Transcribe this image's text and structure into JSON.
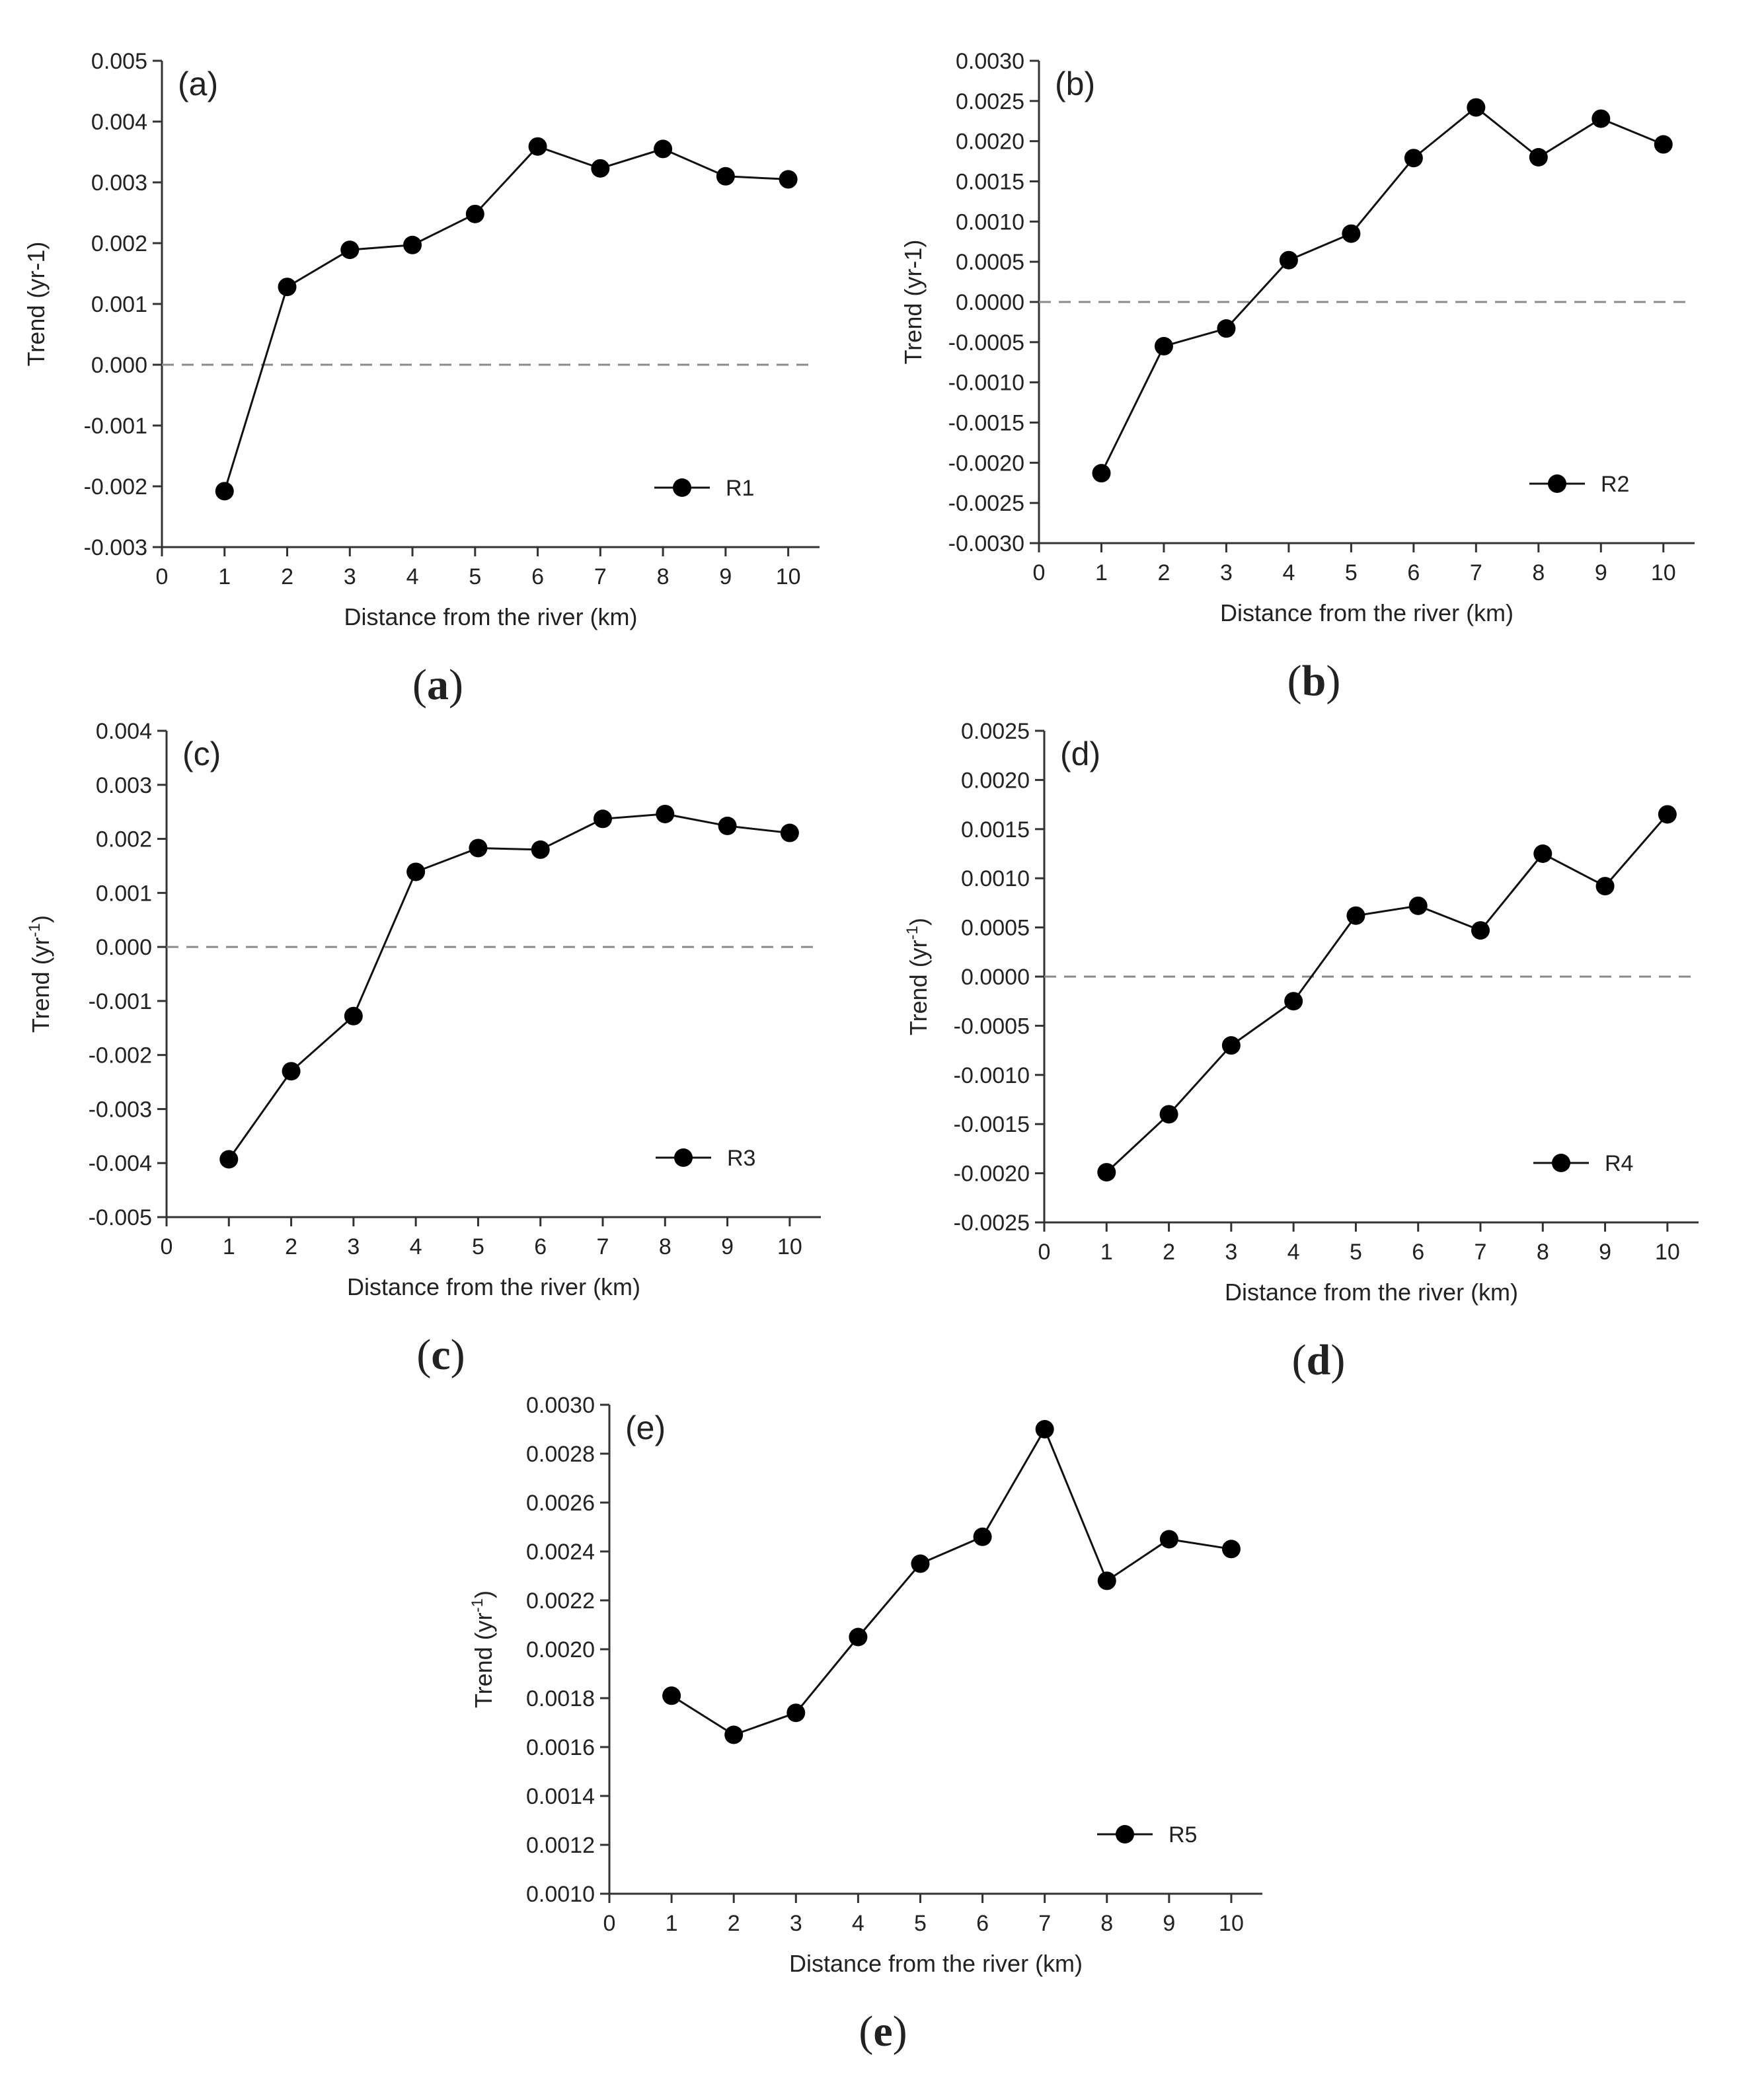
{
  "chart_data": [
    {
      "id": "a",
      "type": "line",
      "panel_label": "(a)",
      "caption_letter": "a",
      "xlabel": "Distance from the river (km)",
      "ylabel": "Trend (yr-1)",
      "xlim": [
        0,
        10.5
      ],
      "xticks": [
        0,
        1,
        2,
        3,
        4,
        5,
        6,
        7,
        8,
        9,
        10
      ],
      "ylim": [
        -0.003,
        0.005
      ],
      "yticks": [
        "0.005",
        "0.004",
        "0.003",
        "0.002",
        "0.001",
        "0.000",
        "-0.001",
        "-0.002",
        "-0.003"
      ],
      "reference_line_y": 0,
      "series": [
        {
          "name": "R1",
          "x": [
            1,
            2,
            3,
            4,
            5,
            6,
            7,
            8,
            9,
            10
          ],
          "values": [
            -0.00208,
            0.00128,
            0.00189,
            0.00197,
            0.00248,
            0.00359,
            0.00323,
            0.00355,
            0.0031,
            0.00305
          ]
        }
      ],
      "legend": "bottom-right"
    },
    {
      "id": "b",
      "type": "line",
      "panel_label": "(b)",
      "caption_letter": "b",
      "xlabel": "Distance from the river (km)",
      "ylabel": "Trend (yr-1)",
      "xlim": [
        0,
        10.5
      ],
      "xticks": [
        0,
        1,
        2,
        3,
        4,
        5,
        6,
        7,
        8,
        9,
        10
      ],
      "ylim": [
        -0.003,
        0.003
      ],
      "yticks": [
        "0.0030",
        "0.0025",
        "0.0020",
        "0.0015",
        "0.0010",
        "0.0005",
        "0.0000",
        "-0.0005",
        "-0.0010",
        "-0.0015",
        "-0.0020",
        "-0.0025",
        "-0.0030"
      ],
      "reference_line_y": 0,
      "series": [
        {
          "name": "R2",
          "x": [
            1,
            2,
            3,
            4,
            5,
            6,
            7,
            8,
            9,
            10
          ],
          "values": [
            -0.00213,
            -0.00055,
            -0.00033,
            0.00052,
            0.00085,
            0.00179,
            0.00242,
            0.0018,
            0.00228,
            0.00196
          ]
        }
      ],
      "legend": "bottom-right"
    },
    {
      "id": "c",
      "type": "line",
      "panel_label": "(c)",
      "caption_letter": "c",
      "xlabel": "Distance from the river (km)",
      "ylabel": "Trend (yr",
      "ylabel_sup": "-1",
      "ylabel_end": ")",
      "xlim": [
        0,
        10.5
      ],
      "xticks": [
        0,
        1,
        2,
        3,
        4,
        5,
        6,
        7,
        8,
        9,
        10
      ],
      "ylim": [
        -0.005,
        0.004
      ],
      "yticks": [
        "0.004",
        "0.003",
        "0.002",
        "0.001",
        "0.000",
        "-0.001",
        "-0.002",
        "-0.003",
        "-0.004",
        "-0.005"
      ],
      "reference_line_y": 0,
      "series": [
        {
          "name": "R3",
          "x": [
            1,
            2,
            3,
            4,
            5,
            6,
            7,
            8,
            9,
            10
          ],
          "values": [
            -0.00393,
            -0.0023,
            -0.00128,
            0.00139,
            0.00183,
            0.0018,
            0.00237,
            0.00246,
            0.00224,
            0.00211
          ]
        }
      ],
      "legend": "bottom-right"
    },
    {
      "id": "d",
      "type": "line",
      "panel_label": "(d)",
      "caption_letter": "d",
      "xlabel": "Distance from the river (km)",
      "ylabel": "Trend (yr",
      "ylabel_sup": "-1",
      "ylabel_end": ")",
      "xlim": [
        0,
        10.5
      ],
      "xticks": [
        0,
        1,
        2,
        3,
        4,
        5,
        6,
        7,
        8,
        9,
        10
      ],
      "ylim": [
        -0.0025,
        0.0025
      ],
      "yticks": [
        "0.0025",
        "0.0020",
        "0.0015",
        "0.0010",
        "0.0005",
        "0.0000",
        "-0.0005",
        "-0.0010",
        "-0.0015",
        "-0.0020",
        "-0.0025"
      ],
      "reference_line_y": 0,
      "series": [
        {
          "name": "R4",
          "x": [
            1,
            2,
            3,
            4,
            5,
            6,
            7,
            8,
            9,
            10
          ],
          "values": [
            -0.00199,
            -0.0014,
            -0.0007,
            -0.00025,
            0.00062,
            0.00072,
            0.00047,
            0.00125,
            0.00092,
            0.00165
          ]
        }
      ],
      "legend": "bottom-right"
    },
    {
      "id": "e",
      "type": "line",
      "panel_label": "(e)",
      "caption_letter": "e",
      "xlabel": "Distance from the river (km)",
      "ylabel": "Trend (yr",
      "ylabel_sup": "-1",
      "ylabel_end": ")",
      "xlim": [
        0,
        10.5
      ],
      "xticks": [
        0,
        1,
        2,
        3,
        4,
        5,
        6,
        7,
        8,
        9,
        10
      ],
      "ylim": [
        0.001,
        0.003
      ],
      "yticks": [
        "0.0030",
        "0.0028",
        "0.0026",
        "0.0024",
        "0.0022",
        "0.0020",
        "0.0018",
        "0.0016",
        "0.0014",
        "0.0012",
        "0.0010"
      ],
      "reference_line_y": null,
      "series": [
        {
          "name": "R5",
          "x": [
            1,
            2,
            3,
            4,
            5,
            6,
            7,
            8,
            9,
            10
          ],
          "values": [
            0.00181,
            0.00165,
            0.00174,
            0.00205,
            0.00235,
            0.00246,
            0.0029,
            0.00228,
            0.00245,
            0.00241
          ]
        }
      ],
      "legend": "bottom-right"
    }
  ]
}
